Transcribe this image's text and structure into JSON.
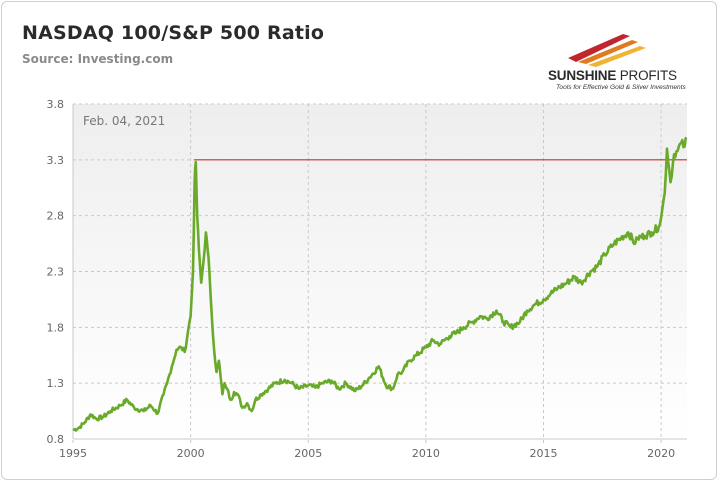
{
  "header": {
    "title": "NASDAQ 100/S&P 500 Ratio",
    "source": "Source: Investing.com"
  },
  "logo": {
    "name_bold": "SUNSHINE",
    "name_light": " PROFITS",
    "tagline": "Tools for Effective Gold & Silver Investments",
    "colors": [
      "#c0262d",
      "#e07a1f",
      "#f2b233"
    ]
  },
  "chart_data": {
    "type": "line",
    "title": "NASDAQ 100/S&P 500 Ratio",
    "xlabel": "",
    "ylabel": "",
    "xlim": [
      1995,
      2021.1
    ],
    "ylim": [
      0.8,
      3.8
    ],
    "yticks": [
      "0.8",
      "1.3",
      "1.8",
      "2.3",
      "2.8",
      "3.3",
      "3.8"
    ],
    "xticks": [
      "1995",
      "2000",
      "2005",
      "2010",
      "2015",
      "2020"
    ],
    "grid": true,
    "legend": "none",
    "annotation": "Feb. 04, 2021",
    "reference_line": {
      "y": 3.3,
      "from_x": 2000.15,
      "color": "#c8322f"
    },
    "series": [
      {
        "color": "#6aaa2a",
        "x": [
          1995.0,
          1995.25,
          1995.5,
          1995.75,
          1996.0,
          1996.3,
          1996.6,
          1997.0,
          1997.3,
          1997.6,
          1998.0,
          1998.3,
          1998.6,
          1998.85,
          1999.0,
          1999.2,
          1999.4,
          1999.6,
          1999.75,
          1999.9,
          2000.0,
          2000.1,
          2000.17,
          2000.22,
          2000.28,
          2000.35,
          2000.45,
          2000.55,
          2000.65,
          2000.72,
          2000.8,
          2000.9,
          2001.0,
          2001.1,
          2001.2,
          2001.28,
          2001.35,
          2001.45,
          2001.55,
          2001.7,
          2001.85,
          2002.0,
          2002.2,
          2002.4,
          2002.6,
          2002.75,
          2003.0,
          2003.3,
          2003.6,
          2004.0,
          2004.3,
          2004.6,
          2005.0,
          2005.3,
          2005.6,
          2006.0,
          2006.3,
          2006.6,
          2007.0,
          2007.3,
          2007.6,
          2008.0,
          2008.3,
          2008.6,
          2008.8,
          2009.0,
          2009.3,
          2009.6,
          2010.0,
          2010.3,
          2010.6,
          2011.0,
          2011.3,
          2011.6,
          2012.0,
          2012.3,
          2012.6,
          2013.0,
          2013.3,
          2013.6,
          2014.0,
          2014.3,
          2014.6,
          2015.0,
          2015.3,
          2015.6,
          2016.0,
          2016.3,
          2016.6,
          2017.0,
          2017.3,
          2017.6,
          2018.0,
          2018.3,
          2018.6,
          2018.9,
          2019.0,
          2019.3,
          2019.6,
          2019.9,
          2020.0,
          2020.15,
          2020.25,
          2020.4,
          2020.55,
          2020.7,
          2020.85,
          2021.0,
          2021.08
        ],
        "y": [
          0.88,
          0.9,
          0.95,
          1.02,
          0.98,
          1.0,
          1.05,
          1.1,
          1.15,
          1.08,
          1.05,
          1.1,
          1.03,
          1.2,
          1.3,
          1.45,
          1.6,
          1.62,
          1.58,
          1.78,
          1.9,
          2.3,
          3.1,
          3.28,
          2.8,
          2.5,
          2.2,
          2.4,
          2.65,
          2.5,
          2.3,
          1.9,
          1.6,
          1.4,
          1.5,
          1.35,
          1.2,
          1.3,
          1.25,
          1.15,
          1.22,
          1.2,
          1.08,
          1.12,
          1.05,
          1.15,
          1.2,
          1.25,
          1.3,
          1.33,
          1.3,
          1.25,
          1.28,
          1.26,
          1.3,
          1.32,
          1.25,
          1.3,
          1.23,
          1.28,
          1.35,
          1.45,
          1.28,
          1.25,
          1.38,
          1.4,
          1.5,
          1.55,
          1.62,
          1.68,
          1.65,
          1.72,
          1.75,
          1.8,
          1.85,
          1.9,
          1.88,
          1.95,
          1.85,
          1.8,
          1.85,
          1.95,
          2.0,
          2.05,
          2.1,
          2.15,
          2.2,
          2.25,
          2.2,
          2.3,
          2.35,
          2.45,
          2.55,
          2.6,
          2.65,
          2.55,
          2.6,
          2.62,
          2.65,
          2.7,
          2.78,
          3.0,
          3.4,
          3.1,
          3.35,
          3.38,
          3.45,
          3.42,
          3.5
        ]
      }
    ]
  }
}
